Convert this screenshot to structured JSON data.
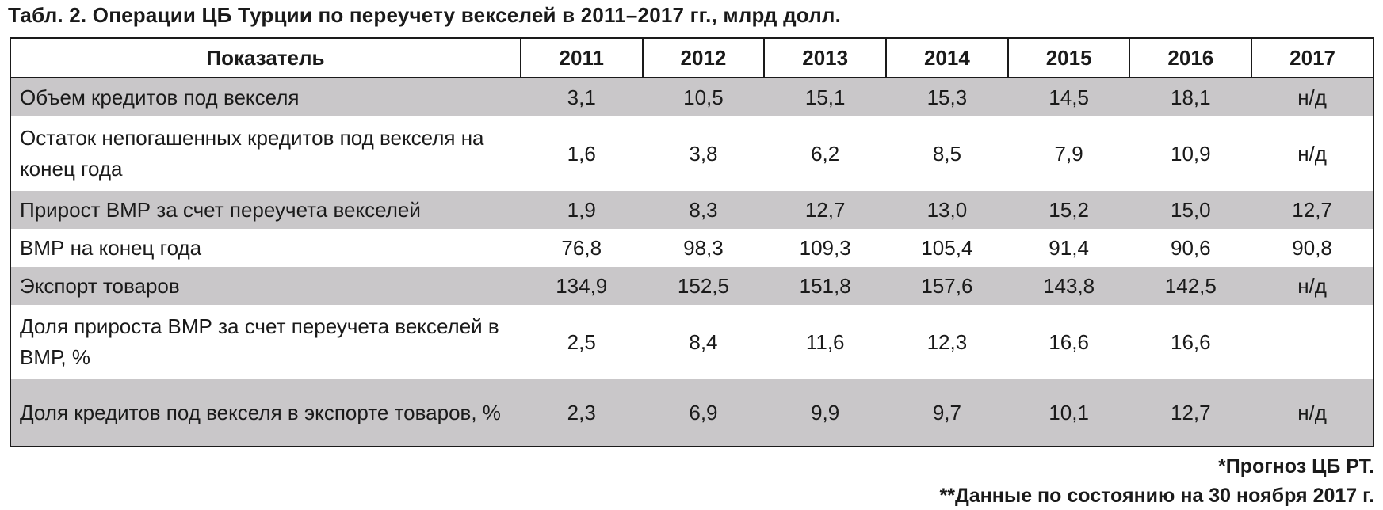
{
  "title": "Табл. 2. Операции ЦБ Турции по переучету векселей в 2011–2017 гг., млрд долл.",
  "table": {
    "headers": [
      "Показатель",
      "2011",
      "2012",
      "2013",
      "2014",
      "2015",
      "2016",
      "2017"
    ],
    "rows": [
      {
        "label": "Объем кредитов под векселя",
        "values": [
          "3,1",
          "10,5",
          "15,1",
          "15,3",
          "14,5",
          "18,1",
          "н/д"
        ]
      },
      {
        "label": "Остаток непогашенных кредитов под векселя на конец года",
        "values": [
          "1,6",
          "3,8",
          "6,2",
          "8,5",
          "7,9",
          "10,9",
          "н/д"
        ]
      },
      {
        "label": "Прирост ВМР за счет переучета векселей",
        "values": [
          "1,9",
          "8,3",
          "12,7",
          "13,0",
          "15,2",
          "15,0",
          "12,7"
        ]
      },
      {
        "label": "ВМР на конец года",
        "values": [
          "76,8",
          "98,3",
          "109,3",
          "105,4",
          "91,4",
          "90,6",
          "90,8"
        ]
      },
      {
        "label": "Экспорт товаров",
        "values": [
          "134,9",
          "152,5",
          "151,8",
          "157,6",
          "143,8",
          "142,5",
          "н/д"
        ]
      },
      {
        "label": "Доля прироста ВМР за счет переучета векселей в ВМР, %",
        "values": [
          "2,5",
          "8,4",
          "11,6",
          "12,3",
          "16,6",
          "16,6",
          ""
        ]
      },
      {
        "label": "Доля кредитов под векселя в экспорте товаров, %",
        "values": [
          "2,3",
          "6,9",
          "9,9",
          "9,7",
          "10,1",
          "12,7",
          "н/д"
        ]
      }
    ]
  },
  "footnotes": {
    "note1": "*Прогноз ЦБ РТ.",
    "note2": "**Данные по состоянию на 30 ноября 2017 г."
  },
  "colors": {
    "shaded_row": "#c9c7c9",
    "border": "#1a1a1a",
    "text": "#1a1a1a"
  }
}
